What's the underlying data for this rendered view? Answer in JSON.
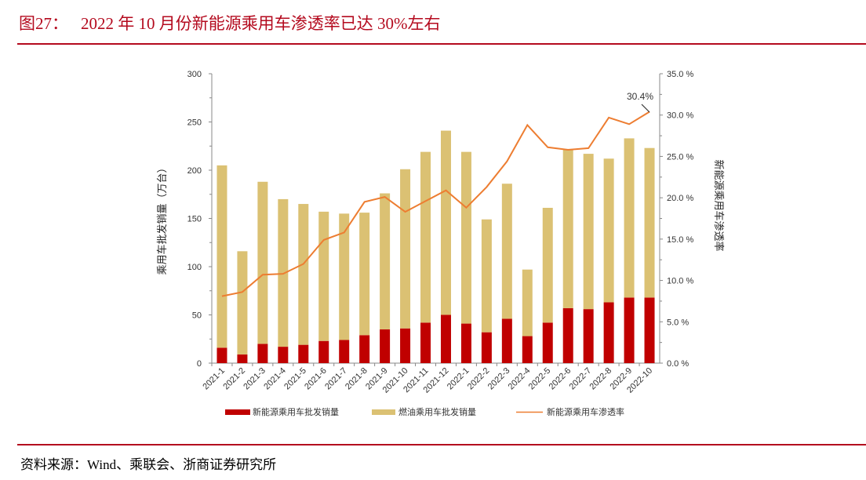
{
  "figure": {
    "number": "图27：",
    "title": "2022 年 10 月份新能源乘用车渗透率已达 30%左右"
  },
  "source": "资料来源：Wind、乘联会、浙商证券研究所",
  "colors": {
    "accent": "#b40a1e",
    "nev_bar": "#c00000",
    "ice_bar": "#dbc173",
    "line": "#ed7d31"
  },
  "chart_data": {
    "type": "bar",
    "subtype": "stacked bar with line on secondary axis",
    "categories": [
      "2021-1",
      "2021-2",
      "2021-3",
      "2021-4",
      "2021-5",
      "2021-6",
      "2021-7",
      "2021-8",
      "2021-9",
      "2021-10",
      "2021-11",
      "2021-12",
      "2022-1",
      "2022-2",
      "2022-3",
      "2022-4",
      "2022-5",
      "2022-6",
      "2022-7",
      "2022-8",
      "2022-9",
      "2022-10"
    ],
    "series": [
      {
        "name": "新能源乘用车批发销量",
        "type": "bar",
        "axis": "left",
        "values": [
          16,
          9,
          20,
          17,
          19,
          23,
          24,
          29,
          35,
          36,
          42,
          50,
          41,
          32,
          46,
          28,
          42,
          57,
          56,
          63,
          68,
          68
        ]
      },
      {
        "name": "燃油乘用车批发销量",
        "type": "bar",
        "axis": "left",
        "values": [
          189,
          107,
          168,
          153,
          146,
          134,
          131,
          127,
          141,
          165,
          177,
          191,
          178,
          117,
          140,
          69,
          119,
          165,
          161,
          149,
          165,
          155
        ]
      },
      {
        "name": "新能源乘用车渗透率",
        "type": "line",
        "axis": "right",
        "values": [
          8.1,
          8.6,
          10.7,
          10.8,
          12.0,
          14.9,
          15.8,
          19.5,
          20.1,
          18.3,
          19.6,
          20.9,
          18.8,
          21.3,
          24.4,
          28.8,
          26.1,
          25.8,
          26.0,
          29.7,
          28.9,
          30.4
        ]
      }
    ],
    "ylabel": "乘用车批发销量（万台）",
    "y2label": "新能源乘用车渗透率",
    "ylim": [
      0,
      300
    ],
    "y2lim": [
      0,
      35
    ],
    "yticks": [
      "0",
      "50",
      "100",
      "150",
      "200",
      "250",
      "300"
    ],
    "y2ticks": [
      "0.0 %",
      "5.0 %",
      "10.0 %",
      "15.0 %",
      "20.0 %",
      "25.0 %",
      "30.0 %",
      "35.0 %"
    ],
    "annotation": "30.4%",
    "legend": "bottom",
    "grid": false
  }
}
